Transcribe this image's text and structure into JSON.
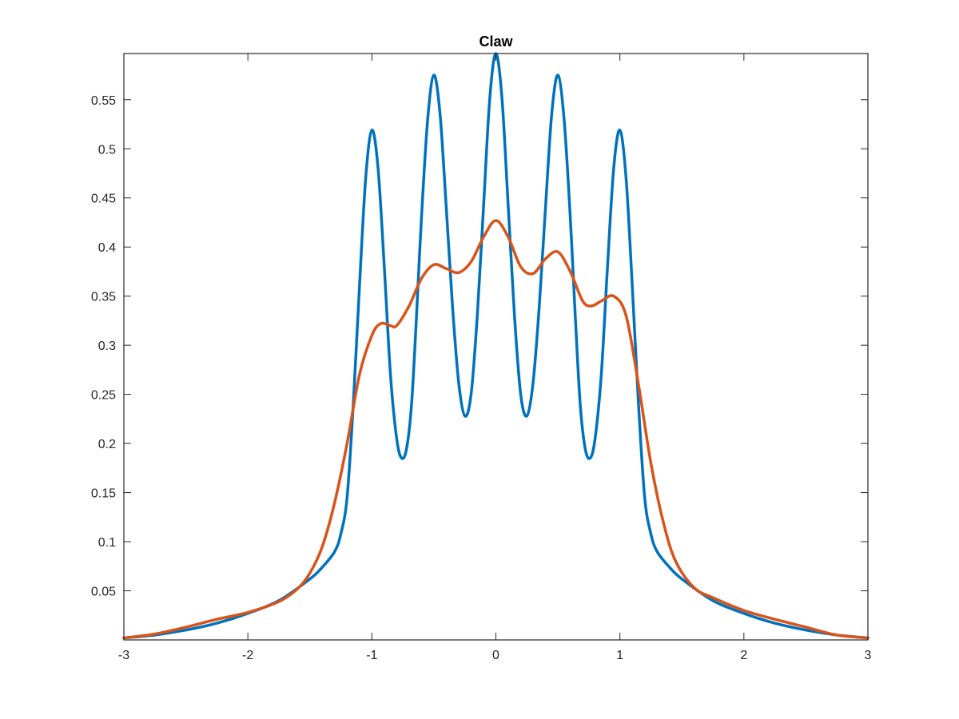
{
  "chart_data": {
    "type": "line",
    "title": "Claw",
    "xlabel": "",
    "ylabel": "",
    "xlim": [
      -3,
      3
    ],
    "ylim": [
      0,
      0.597
    ],
    "grid": false,
    "box": true,
    "x_ticks": [
      -3,
      -2,
      -1,
      0,
      1,
      2,
      3
    ],
    "x_tick_labels": [
      "-3",
      "-2",
      "-1",
      "0",
      "1",
      "2",
      "3"
    ],
    "y_ticks": [
      0.05,
      0.1,
      0.15,
      0.2,
      0.25,
      0.3,
      0.35,
      0.4,
      0.45,
      0.5,
      0.55
    ],
    "y_tick_labels": [
      "0.05",
      "0.1",
      "0.15",
      "0.2",
      "0.25",
      "0.3",
      "0.35",
      "0.4",
      "0.45",
      "0.5",
      "0.55"
    ],
    "series": [
      {
        "color": "#0072BD",
        "points": [
          [
            -3.0,
            0.002
          ],
          [
            -2.75,
            0.005
          ],
          [
            -2.5,
            0.01
          ],
          [
            -2.25,
            0.017
          ],
          [
            -2.0,
            0.027
          ],
          [
            -1.75,
            0.04
          ],
          [
            -1.5,
            0.062
          ],
          [
            -1.4,
            0.074
          ],
          [
            -1.3,
            0.09
          ],
          [
            -1.25,
            0.108
          ],
          [
            -1.2,
            0.145
          ],
          [
            -1.15,
            0.24
          ],
          [
            -1.1,
            0.36
          ],
          [
            -1.05,
            0.47
          ],
          [
            -1.0,
            0.519
          ],
          [
            -0.95,
            0.48
          ],
          [
            -0.9,
            0.38
          ],
          [
            -0.85,
            0.27
          ],
          [
            -0.8,
            0.205
          ],
          [
            -0.76,
            0.185
          ],
          [
            -0.72,
            0.195
          ],
          [
            -0.68,
            0.24
          ],
          [
            -0.64,
            0.33
          ],
          [
            -0.6,
            0.43
          ],
          [
            -0.55,
            0.53
          ],
          [
            -0.5,
            0.575
          ],
          [
            -0.45,
            0.535
          ],
          [
            -0.4,
            0.44
          ],
          [
            -0.35,
            0.34
          ],
          [
            -0.3,
            0.262
          ],
          [
            -0.25,
            0.228
          ],
          [
            -0.2,
            0.25
          ],
          [
            -0.15,
            0.33
          ],
          [
            -0.1,
            0.44
          ],
          [
            -0.05,
            0.55
          ],
          [
            0.0,
            0.597
          ],
          [
            0.05,
            0.55
          ],
          [
            0.1,
            0.44
          ],
          [
            0.15,
            0.33
          ],
          [
            0.2,
            0.25
          ],
          [
            0.25,
            0.228
          ],
          [
            0.3,
            0.262
          ],
          [
            0.35,
            0.34
          ],
          [
            0.4,
            0.44
          ],
          [
            0.45,
            0.535
          ],
          [
            0.5,
            0.575
          ],
          [
            0.55,
            0.53
          ],
          [
            0.6,
            0.43
          ],
          [
            0.64,
            0.33
          ],
          [
            0.68,
            0.24
          ],
          [
            0.72,
            0.195
          ],
          [
            0.76,
            0.185
          ],
          [
            0.8,
            0.205
          ],
          [
            0.85,
            0.27
          ],
          [
            0.9,
            0.38
          ],
          [
            0.95,
            0.48
          ],
          [
            1.0,
            0.519
          ],
          [
            1.05,
            0.47
          ],
          [
            1.1,
            0.36
          ],
          [
            1.15,
            0.24
          ],
          [
            1.2,
            0.145
          ],
          [
            1.25,
            0.108
          ],
          [
            1.3,
            0.09
          ],
          [
            1.4,
            0.074
          ],
          [
            1.5,
            0.062
          ],
          [
            1.75,
            0.04
          ],
          [
            2.0,
            0.027
          ],
          [
            2.25,
            0.017
          ],
          [
            2.5,
            0.01
          ],
          [
            2.75,
            0.005
          ],
          [
            3.0,
            0.002
          ]
        ]
      },
      {
        "color": "#D95319",
        "points": [
          [
            -3.0,
            0.002
          ],
          [
            -2.75,
            0.006
          ],
          [
            -2.5,
            0.013
          ],
          [
            -2.25,
            0.021
          ],
          [
            -2.0,
            0.028
          ],
          [
            -1.75,
            0.039
          ],
          [
            -1.6,
            0.052
          ],
          [
            -1.5,
            0.068
          ],
          [
            -1.4,
            0.095
          ],
          [
            -1.3,
            0.14
          ],
          [
            -1.2,
            0.2
          ],
          [
            -1.1,
            0.27
          ],
          [
            -1.0,
            0.31
          ],
          [
            -0.93,
            0.322
          ],
          [
            -0.85,
            0.32
          ],
          [
            -0.8,
            0.32
          ],
          [
            -0.7,
            0.34
          ],
          [
            -0.6,
            0.368
          ],
          [
            -0.5,
            0.382
          ],
          [
            -0.4,
            0.378
          ],
          [
            -0.3,
            0.374
          ],
          [
            -0.2,
            0.385
          ],
          [
            -0.1,
            0.41
          ],
          [
            0.0,
            0.427
          ],
          [
            0.1,
            0.41
          ],
          [
            0.2,
            0.38
          ],
          [
            0.3,
            0.373
          ],
          [
            0.4,
            0.388
          ],
          [
            0.5,
            0.395
          ],
          [
            0.6,
            0.375
          ],
          [
            0.7,
            0.345
          ],
          [
            0.77,
            0.34
          ],
          [
            0.85,
            0.345
          ],
          [
            0.95,
            0.35
          ],
          [
            1.05,
            0.33
          ],
          [
            1.15,
            0.26
          ],
          [
            1.25,
            0.18
          ],
          [
            1.35,
            0.12
          ],
          [
            1.45,
            0.08
          ],
          [
            1.6,
            0.053
          ],
          [
            1.75,
            0.043
          ],
          [
            2.0,
            0.03
          ],
          [
            2.25,
            0.021
          ],
          [
            2.5,
            0.013
          ],
          [
            2.75,
            0.005
          ],
          [
            3.0,
            0.002
          ]
        ]
      }
    ]
  }
}
